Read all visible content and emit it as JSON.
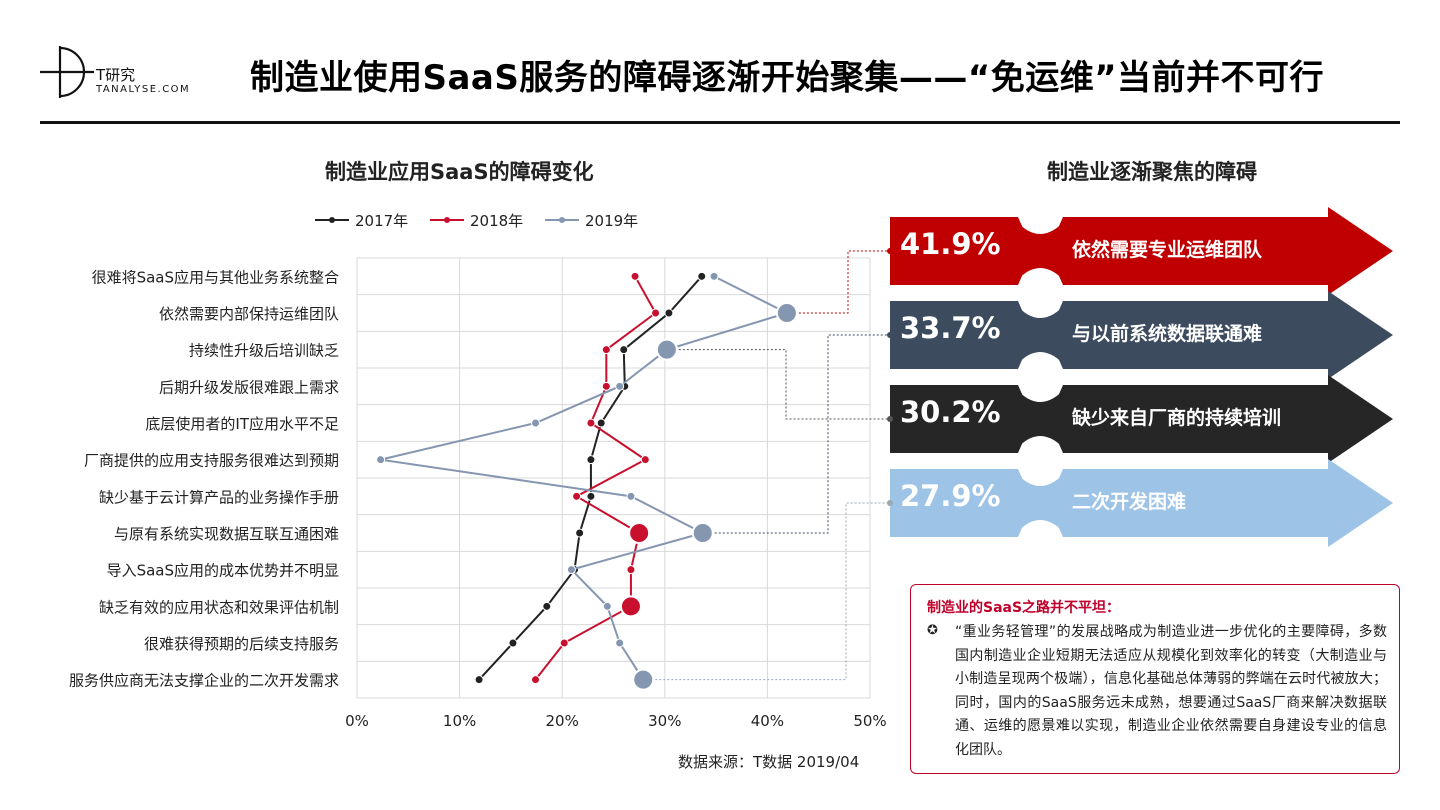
{
  "brand": {
    "name_cn": "T研究",
    "domain": "TANALYSE.COM"
  },
  "page_title": "制造业使用SaaS服务的障碍逐渐开始聚集——“免运维”当前并不可行",
  "chart_title": "制造业应用SaaS的障碍变化",
  "right_title": "制造业逐渐聚焦的障碍",
  "source": "数据来源：T数据 2019/04",
  "colors": {
    "s2017": "#222222",
    "s2018": "#c8102e",
    "s2019": "#8496b0",
    "accent": "#c0002b"
  },
  "chart_data": {
    "type": "line",
    "orientation": "horizontal",
    "categories": [
      "很难将SaaS应用与其他业务系统整合",
      "依然需要内部保持运维团队",
      "持续性升级后培训缺乏",
      "后期升级发版很难跟上需求",
      "底层使用者的IT应用水平不足",
      "厂商提供的应用支持服务很难达到预期",
      "缺少基于云计算产品的业务操作手册",
      "与原有系统实现数据互联互通困难",
      "导入SaaS应用的成本优势并不明显",
      "缺乏有效的应用状态和效果评估机制",
      "很难获得预期的后续支持服务",
      "服务供应商无法支撑企业的二次开发需求"
    ],
    "xlim": [
      0,
      50
    ],
    "ticks": [
      "0%",
      "10%",
      "20%",
      "30%",
      "40%",
      "50%"
    ],
    "grid": true,
    "legend_position": "top",
    "series": [
      {
        "name": "2017年",
        "color": "#222222",
        "values": [
          33.6,
          30.4,
          26.0,
          26.1,
          23.8,
          22.8,
          22.8,
          21.7,
          21.2,
          18.5,
          15.2,
          11.9
        ],
        "highlight": []
      },
      {
        "name": "2018年",
        "color": "#c8102e",
        "values": [
          27.1,
          29.1,
          24.3,
          24.3,
          22.8,
          28.1,
          21.4,
          27.5,
          26.7,
          26.7,
          20.2,
          17.4
        ],
        "highlight": [
          7,
          9
        ]
      },
      {
        "name": "2019年",
        "color": "#8496b0",
        "values": [
          34.8,
          41.9,
          30.2,
          25.6,
          17.4,
          2.3,
          26.7,
          33.7,
          20.9,
          24.4,
          25.6,
          27.9
        ],
        "highlight": [
          1,
          2,
          7,
          11
        ]
      }
    ]
  },
  "focus": [
    {
      "pct": "41.9%",
      "label": "依然需要专业运维团队",
      "color": "#c00000"
    },
    {
      "pct": "33.7%",
      "label": "与以前系统数据联通难",
      "color": "#3c4b5e"
    },
    {
      "pct": "30.2%",
      "label": "缺少来自厂商的持续培训",
      "color": "#262626"
    },
    {
      "pct": "27.9%",
      "label": "二次开发困难",
      "color": "#9dc3e6"
    }
  ],
  "note": {
    "title": "制造业的SaaS之路并不平坦：",
    "bullet": "✪",
    "body": "“重业务轻管理”的发展战略成为制造业进一步优化的主要障碍，多数国内制造业企业短期无法适应从规模化到效率化的转变（大制造业与小制造呈现两个极端），信息化基础总体薄弱的弊端在云时代被放大；同时，国内的SaaS服务远未成熟，想要通过SaaS厂商来解决数据联通、运维的愿景难以实现，制造业企业依然需要自身建设专业的信息化团队。"
  }
}
